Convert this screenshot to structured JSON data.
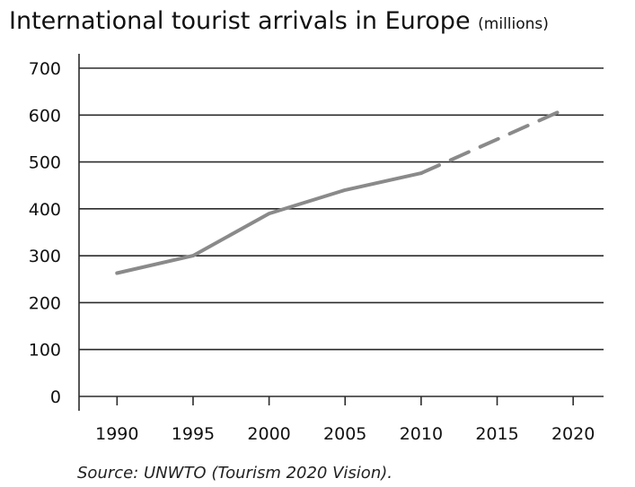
{
  "chart_data": {
    "type": "line",
    "title": "International tourist arrivals in Europe",
    "unit": "(millions)",
    "xlabel": "",
    "ylabel": "",
    "x_ticks": [
      "1990",
      "1995",
      "2000",
      "2005",
      "2010",
      "2015",
      "2020"
    ],
    "y_ticks": [
      "0",
      "100",
      "200",
      "300",
      "400",
      "500",
      "600",
      "700"
    ],
    "xlim": [
      1987.5,
      2022
    ],
    "ylim": [
      0,
      700
    ],
    "grid": true,
    "series": [
      {
        "name": "",
        "style": "solid",
        "x": [
          1990,
          1995,
          2000,
          2005,
          2010
        ],
        "y": [
          263,
          300,
          390,
          440,
          476
        ]
      },
      {
        "name": "",
        "style": "dashed",
        "x": [
          2010,
          2019
        ],
        "y": [
          476,
          606
        ]
      }
    ],
    "line_color": "#8a8a8a",
    "source": "Source: UNWTO (Tourism 2020 Vision)."
  }
}
